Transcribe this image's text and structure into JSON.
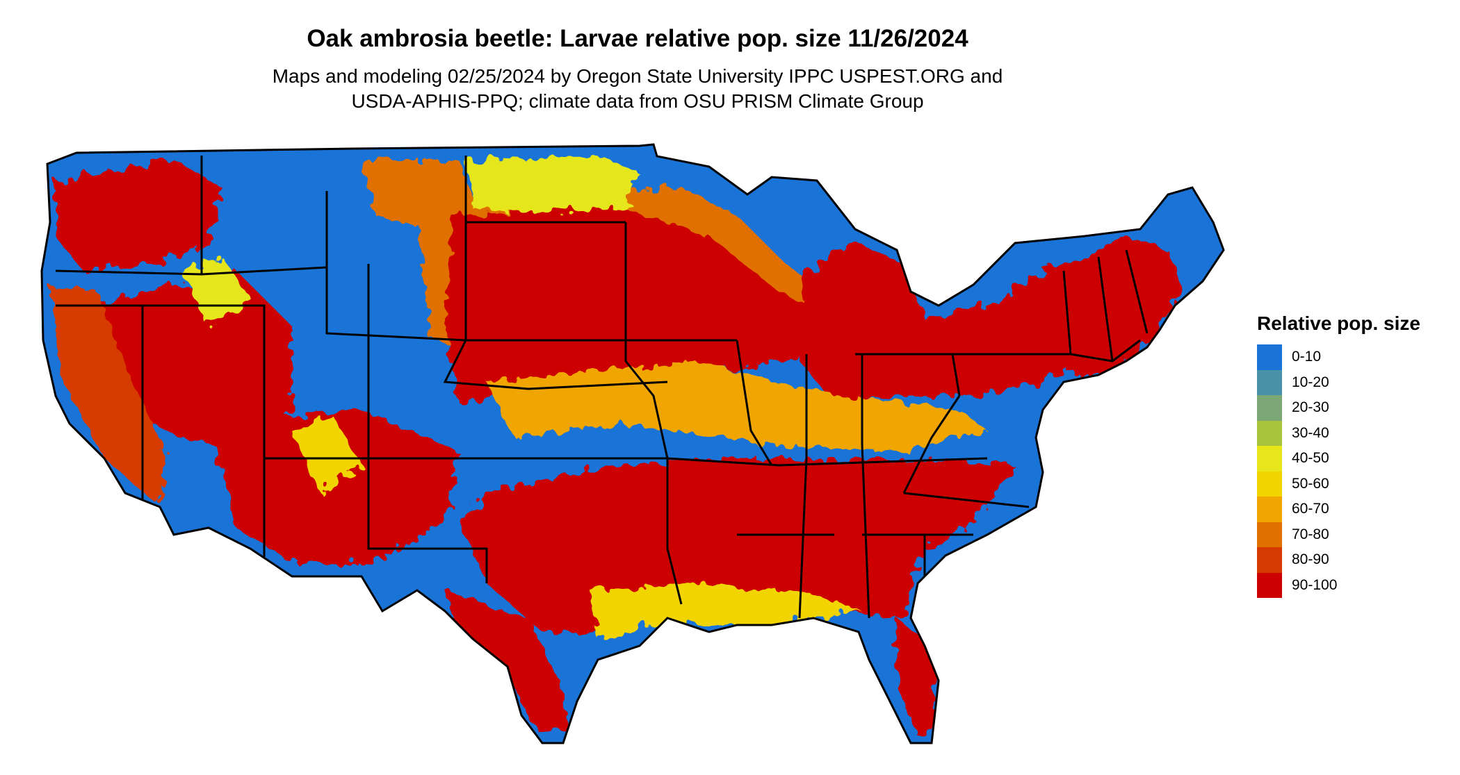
{
  "title": "Oak ambrosia beetle: Larvae relative pop. size 11/26/2024",
  "subtitle_line1": "Maps and modeling 02/25/2024 by Oregon State University IPPC USPEST.ORG and",
  "subtitle_line2": "USDA-APHIS-PPQ; climate data from OSU PRISM Climate Group",
  "legend": {
    "title": "Relative pop. size",
    "items": [
      {
        "label": "0-10",
        "color": "#1a73d6"
      },
      {
        "label": "10-20",
        "color": "#4a92a8"
      },
      {
        "label": "20-30",
        "color": "#7ba874"
      },
      {
        "label": "30-40",
        "color": "#a8c43c"
      },
      {
        "label": "40-50",
        "color": "#e6e61a"
      },
      {
        "label": "50-60",
        "color": "#f2d500"
      },
      {
        "label": "60-70",
        "color": "#f0a500"
      },
      {
        "label": "70-80",
        "color": "#e07000"
      },
      {
        "label": "80-90",
        "color": "#d63a00"
      },
      {
        "label": "90-100",
        "color": "#cc0000"
      }
    ]
  }
}
